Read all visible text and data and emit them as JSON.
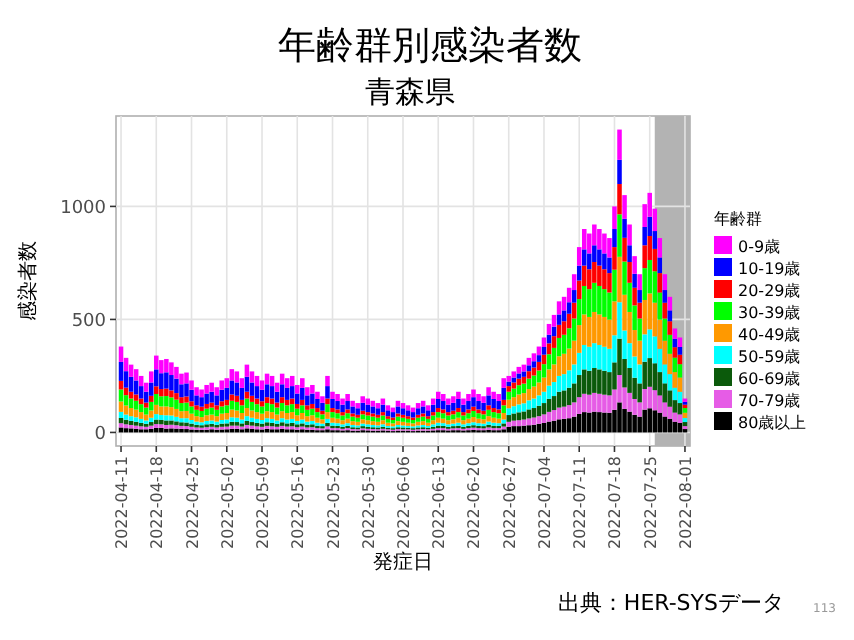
{
  "chart_data": {
    "type": "bar",
    "stacked": true,
    "title": "年齢群別感染者数",
    "subtitle": "青森県",
    "xlabel": "発症日",
    "ylabel": "感染者数",
    "legend_title": "年齢群",
    "legend": "right",
    "grid": true,
    "annotations": [
      "出典：HER-SYSデータ",
      "113"
    ],
    "xlim": [
      "2022-04-10",
      "2022-08-02"
    ],
    "xticks": [
      "2022-04-11",
      "2022-04-18",
      "2022-04-25",
      "2022-05-02",
      "2022-05-09",
      "2022-05-16",
      "2022-05-23",
      "2022-05-30",
      "2022-06-06",
      "2022-06-13",
      "2022-06-20",
      "2022-06-27",
      "2022-07-04",
      "2022-07-11",
      "2022-07-18",
      "2022-07-25",
      "2022-08-01"
    ],
    "ylim": [
      -60,
      1400
    ],
    "yticks": [
      0,
      500,
      1000
    ],
    "bands": [
      {
        "axis": "x",
        "from": "2022-07-26",
        "to": "2022-08-02",
        "color": "#b3b3b3"
      }
    ],
    "x": [
      "2022-04-11",
      "2022-04-12",
      "2022-04-13",
      "2022-04-14",
      "2022-04-15",
      "2022-04-16",
      "2022-04-17",
      "2022-04-18",
      "2022-04-19",
      "2022-04-20",
      "2022-04-21",
      "2022-04-22",
      "2022-04-23",
      "2022-04-24",
      "2022-04-25",
      "2022-04-26",
      "2022-04-27",
      "2022-04-28",
      "2022-04-29",
      "2022-04-30",
      "2022-05-01",
      "2022-05-02",
      "2022-05-03",
      "2022-05-04",
      "2022-05-05",
      "2022-05-06",
      "2022-05-07",
      "2022-05-08",
      "2022-05-09",
      "2022-05-10",
      "2022-05-11",
      "2022-05-12",
      "2022-05-13",
      "2022-05-14",
      "2022-05-15",
      "2022-05-16",
      "2022-05-17",
      "2022-05-18",
      "2022-05-19",
      "2022-05-20",
      "2022-05-21",
      "2022-05-22",
      "2022-05-23",
      "2022-05-24",
      "2022-05-25",
      "2022-05-26",
      "2022-05-27",
      "2022-05-28",
      "2022-05-29",
      "2022-05-30",
      "2022-05-31",
      "2022-06-01",
      "2022-06-02",
      "2022-06-03",
      "2022-06-04",
      "2022-06-05",
      "2022-06-06",
      "2022-06-07",
      "2022-06-08",
      "2022-06-09",
      "2022-06-10",
      "2022-06-11",
      "2022-06-12",
      "2022-06-13",
      "2022-06-14",
      "2022-06-15",
      "2022-06-16",
      "2022-06-17",
      "2022-06-18",
      "2022-06-19",
      "2022-06-20",
      "2022-06-21",
      "2022-06-22",
      "2022-06-23",
      "2022-06-24",
      "2022-06-25",
      "2022-06-26",
      "2022-06-27",
      "2022-06-28",
      "2022-06-29",
      "2022-06-30",
      "2022-07-01",
      "2022-07-02",
      "2022-07-03",
      "2022-07-04",
      "2022-07-05",
      "2022-07-06",
      "2022-07-07",
      "2022-07-08",
      "2022-07-09",
      "2022-07-10",
      "2022-07-11",
      "2022-07-12",
      "2022-07-13",
      "2022-07-14",
      "2022-07-15",
      "2022-07-16",
      "2022-07-17",
      "2022-07-18",
      "2022-07-19",
      "2022-07-20",
      "2022-07-21",
      "2022-07-22",
      "2022-07-23",
      "2022-07-24",
      "2022-07-25",
      "2022-07-26",
      "2022-07-27",
      "2022-07-28",
      "2022-07-29",
      "2022-07-30",
      "2022-07-31",
      "2022-08-01"
    ],
    "series": [
      {
        "name": "80歳以上",
        "color": "#000000",
        "values": [
          22,
          19,
          18,
          16,
          14,
          14,
          16,
          20,
          20,
          17,
          18,
          17,
          16,
          15,
          13,
          12,
          11,
          12,
          14,
          12,
          13,
          14,
          16,
          16,
          14,
          18,
          16,
          14,
          13,
          16,
          14,
          14,
          16,
          14,
          14,
          12,
          14,
          12,
          12,
          10,
          10,
          14,
          10,
          10,
          9,
          10,
          8,
          8,
          10,
          9,
          8,
          8,
          9,
          8,
          6,
          8,
          8,
          8,
          6,
          8,
          8,
          8,
          9,
          10,
          10,
          9,
          10,
          10,
          9,
          10,
          11,
          10,
          10,
          12,
          10,
          10,
          14,
          25,
          28,
          28,
          30,
          32,
          34,
          38,
          42,
          48,
          52,
          58,
          60,
          63,
          70,
          82,
          90,
          88,
          92,
          90,
          88,
          87,
          100,
          133,
          104,
          92,
          78,
          70,
          101,
          107,
          98,
          87,
          70,
          60,
          47,
          42,
          15
        ]
      },
      {
        "name": "70-79歳",
        "color": "#e65ce6",
        "values": [
          19,
          17,
          15,
          14,
          13,
          11,
          14,
          17,
          16,
          16,
          16,
          15,
          13,
          13,
          12,
          10,
          10,
          11,
          11,
          10,
          12,
          12,
          14,
          14,
          12,
          15,
          14,
          13,
          12,
          13,
          13,
          11,
          13,
          12,
          13,
          11,
          12,
          10,
          11,
          9,
          8,
          13,
          9,
          9,
          7,
          9,
          7,
          6,
          8,
          7,
          7,
          6,
          7,
          6,
          6,
          7,
          6,
          6,
          6,
          6,
          7,
          6,
          7,
          9,
          9,
          7,
          8,
          9,
          7,
          9,
          10,
          9,
          8,
          10,
          9,
          9,
          12,
          22,
          24,
          26,
          27,
          30,
          32,
          34,
          38,
          43,
          47,
          52,
          54,
          58,
          63,
          74,
          81,
          79,
          83,
          81,
          79,
          77,
          90,
          121,
          95,
          83,
          70,
          63,
          91,
          95,
          89,
          77,
          63,
          54,
          41,
          38,
          13
        ]
      },
      {
        "name": "60-69歳",
        "color": "#0b5a0b",
        "values": [
          23,
          20,
          18,
          17,
          15,
          13,
          16,
          20,
          19,
          20,
          19,
          17,
          16,
          16,
          14,
          12,
          11,
          13,
          13,
          12,
          14,
          14,
          17,
          16,
          14,
          18,
          16,
          15,
          14,
          16,
          15,
          13,
          16,
          14,
          15,
          13,
          14,
          12,
          13,
          11,
          10,
          15,
          11,
          10,
          9,
          10,
          8,
          8,
          10,
          9,
          8,
          8,
          9,
          7,
          7,
          8,
          8,
          7,
          7,
          8,
          8,
          7,
          9,
          11,
          10,
          9,
          10,
          11,
          9,
          10,
          11,
          10,
          10,
          12,
          11,
          10,
          14,
          30,
          32,
          35,
          36,
          40,
          42,
          46,
          50,
          58,
          62,
          70,
          72,
          77,
          84,
          98,
          108,
          106,
          110,
          108,
          106,
          103,
          120,
          161,
          126,
          110,
          94,
          84,
          121,
          127,
          119,
          103,
          84,
          72,
          55,
          50,
          18
        ]
      },
      {
        "name": "50-59歳",
        "color": "#00ffff",
        "values": [
          27,
          23,
          21,
          20,
          18,
          15,
          19,
          24,
          22,
          23,
          22,
          20,
          18,
          19,
          16,
          14,
          13,
          15,
          15,
          14,
          16,
          17,
          20,
          19,
          17,
          21,
          19,
          18,
          16,
          18,
          18,
          15,
          18,
          17,
          18,
          15,
          17,
          14,
          15,
          13,
          11,
          18,
          13,
          12,
          11,
          12,
          10,
          9,
          11,
          11,
          10,
          9,
          11,
          8,
          8,
          10,
          9,
          8,
          8,
          9,
          10,
          8,
          11,
          13,
          12,
          11,
          11,
          13,
          11,
          12,
          13,
          12,
          11,
          14,
          13,
          12,
          17,
          30,
          32,
          35,
          36,
          40,
          42,
          46,
          50,
          58,
          62,
          70,
          72,
          77,
          84,
          98,
          108,
          106,
          110,
          108,
          106,
          103,
          120,
          161,
          126,
          110,
          94,
          84,
          121,
          127,
          119,
          103,
          84,
          72,
          55,
          50,
          18
        ]
      },
      {
        "name": "40-49歳",
        "color": "#ff9900",
        "values": [
          46,
          40,
          36,
          34,
          30,
          26,
          32,
          41,
          38,
          39,
          37,
          35,
          31,
          32,
          28,
          24,
          23,
          25,
          26,
          24,
          28,
          29,
          34,
          32,
          29,
          36,
          32,
          30,
          28,
          31,
          30,
          26,
          31,
          29,
          30,
          25,
          29,
          24,
          25,
          22,
          19,
          30,
          22,
          20,
          18,
          20,
          17,
          16,
          19,
          18,
          17,
          16,
          18,
          14,
          13,
          17,
          16,
          14,
          13,
          16,
          17,
          14,
          18,
          22,
          20,
          18,
          19,
          22,
          18,
          20,
          23,
          20,
          19,
          24,
          22,
          20,
          29,
          38,
          40,
          44,
          45,
          50,
          53,
          57,
          63,
          72,
          78,
          87,
          90,
          96,
          105,
          123,
          135,
          132,
          138,
          135,
          132,
          129,
          150,
          201,
          158,
          138,
          117,
          105,
          152,
          159,
          149,
          129,
          105,
          90,
          69,
          63,
          23
        ]
      },
      {
        "name": "30-39歳",
        "color": "#00ff00",
        "values": [
          53,
          46,
          42,
          39,
          35,
          31,
          38,
          48,
          45,
          46,
          43,
          41,
          36,
          37,
          32,
          28,
          27,
          29,
          31,
          28,
          32,
          34,
          39,
          38,
          34,
          42,
          38,
          35,
          32,
          36,
          35,
          31,
          36,
          34,
          35,
          29,
          34,
          28,
          29,
          25,
          22,
          35,
          25,
          24,
          21,
          24,
          20,
          18,
          22,
          21,
          20,
          18,
          21,
          17,
          15,
          20,
          18,
          17,
          15,
          18,
          20,
          17,
          21,
          25,
          24,
          21,
          22,
          25,
          21,
          24,
          27,
          24,
          22,
          28,
          25,
          24,
          34,
          35,
          38,
          41,
          42,
          46,
          49,
          53,
          59,
          67,
          73,
          81,
          84,
          90,
          98,
          115,
          126,
          123,
          129,
          126,
          123,
          120,
          140,
          188,
          147,
          129,
          109,
          98,
          141,
          148,
          139,
          120,
          98,
          84,
          64,
          59,
          21
        ]
      },
      {
        "name": "20-29歳",
        "color": "#ff0000",
        "values": [
          38,
          33,
          30,
          28,
          25,
          22,
          27,
          34,
          32,
          33,
          31,
          29,
          26,
          27,
          23,
          20,
          19,
          21,
          22,
          20,
          23,
          24,
          28,
          27,
          24,
          30,
          27,
          25,
          23,
          26,
          25,
          22,
          26,
          24,
          25,
          21,
          24,
          20,
          21,
          18,
          16,
          25,
          18,
          17,
          15,
          17,
          14,
          13,
          16,
          15,
          14,
          13,
          15,
          12,
          11,
          14,
          13,
          12,
          11,
          13,
          14,
          12,
          15,
          18,
          17,
          15,
          16,
          18,
          15,
          17,
          19,
          17,
          16,
          20,
          18,
          17,
          24,
          25,
          27,
          29,
          30,
          33,
          35,
          38,
          42,
          48,
          52,
          58,
          60,
          64,
          70,
          82,
          90,
          88,
          92,
          90,
          88,
          86,
          100,
          134,
          105,
          92,
          78,
          70,
          101,
          106,
          99,
          86,
          70,
          60,
          46,
          42,
          15
        ]
      },
      {
        "name": "10-19歳",
        "color": "#0000ff",
        "values": [
          84,
          73,
          66,
          62,
          55,
          48,
          59,
          75,
          70,
          72,
          68,
          64,
          57,
          58,
          51,
          44,
          42,
          46,
          48,
          44,
          51,
          53,
          62,
          59,
          53,
          66,
          59,
          55,
          51,
          57,
          55,
          48,
          57,
          53,
          55,
          46,
          53,
          44,
          46,
          40,
          35,
          55,
          40,
          37,
          33,
          37,
          31,
          29,
          35,
          33,
          31,
          29,
          33,
          26,
          24,
          31,
          29,
          26,
          24,
          29,
          31,
          26,
          33,
          40,
          37,
          33,
          35,
          40,
          33,
          37,
          42,
          37,
          35,
          44,
          40,
          37,
          53,
          20,
          22,
          23,
          24,
          26,
          28,
          30,
          34,
          38,
          42,
          46,
          48,
          51,
          56,
          66,
          72,
          70,
          74,
          72,
          70,
          69,
          80,
          107,
          84,
          74,
          62,
          56,
          81,
          85,
          79,
          69,
          56,
          48,
          37,
          34,
          12
        ]
      },
      {
        "name": "0-9歳",
        "color": "#ff00ff",
        "values": [
          68,
          59,
          54,
          50,
          45,
          40,
          49,
          61,
          58,
          59,
          56,
          52,
          47,
          48,
          41,
          36,
          34,
          38,
          40,
          36,
          41,
          43,
          50,
          49,
          43,
          54,
          49,
          45,
          41,
          47,
          45,
          40,
          47,
          43,
          45,
          38,
          43,
          36,
          38,
          32,
          29,
          45,
          32,
          31,
          27,
          31,
          25,
          23,
          29,
          27,
          25,
          23,
          27,
          22,
          20,
          25,
          23,
          22,
          20,
          23,
          25,
          22,
          27,
          32,
          31,
          27,
          29,
          32,
          27,
          31,
          34,
          31,
          29,
          36,
          32,
          31,
          43,
          25,
          27,
          29,
          30,
          33,
          35,
          38,
          42,
          48,
          52,
          58,
          60,
          64,
          70,
          82,
          90,
          88,
          92,
          90,
          88,
          86,
          100,
          134,
          105,
          92,
          78,
          70,
          101,
          106,
          99,
          86,
          70,
          60,
          46,
          42,
          15
        ]
      }
    ]
  }
}
